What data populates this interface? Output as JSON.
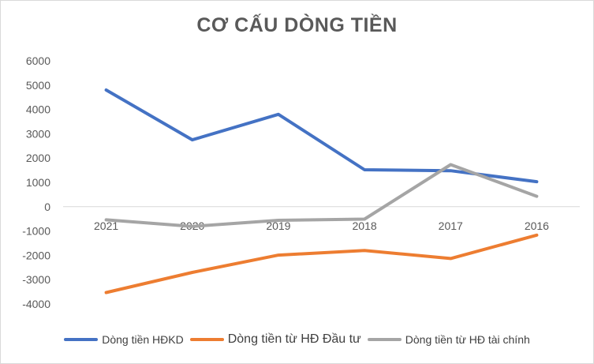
{
  "chart_data": {
    "type": "line",
    "title": "CƠ CẤU DÒNG TIỀN",
    "categories": [
      "2021",
      "2020",
      "2019",
      "2018",
      "2017",
      "2016"
    ],
    "ylim": [
      -4000,
      6000
    ],
    "yticks": [
      6000,
      5000,
      4000,
      3000,
      2000,
      1000,
      0,
      -1000,
      -2000,
      -3000,
      -4000
    ],
    "grid": false,
    "legend_position": "bottom",
    "series": [
      {
        "name": "Dòng tiền HĐKD",
        "color": "#4472c4",
        "values": [
          4800,
          2750,
          3800,
          1520,
          1480,
          1030
        ]
      },
      {
        "name": "Dòng tiền từ HĐ Đầu tư",
        "color": "#ed7d31",
        "values": [
          -3530,
          -2700,
          -1990,
          -1800,
          -2130,
          -1170
        ]
      },
      {
        "name": "Dòng tiền từ HĐ tài chính",
        "color": "#a5a5a5",
        "values": [
          -540,
          -810,
          -560,
          -510,
          1730,
          430
        ]
      }
    ]
  }
}
